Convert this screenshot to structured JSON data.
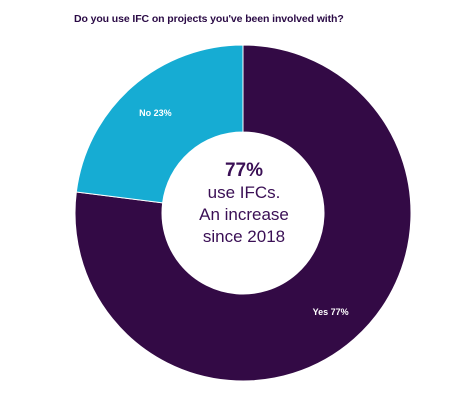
{
  "chart_data": {
    "type": "pie",
    "title": "Do you use IFC on projects you've been involved with?",
    "slices": [
      {
        "label": "Yes",
        "value": 77,
        "display": "Yes 77%",
        "color": "#330a45"
      },
      {
        "label": "No",
        "value": 23,
        "display": "No 23%",
        "color": "#16acd3"
      }
    ],
    "center": {
      "headline": "77%",
      "lines": [
        "use IFCs.",
        "An increase",
        "since 2018"
      ]
    }
  }
}
